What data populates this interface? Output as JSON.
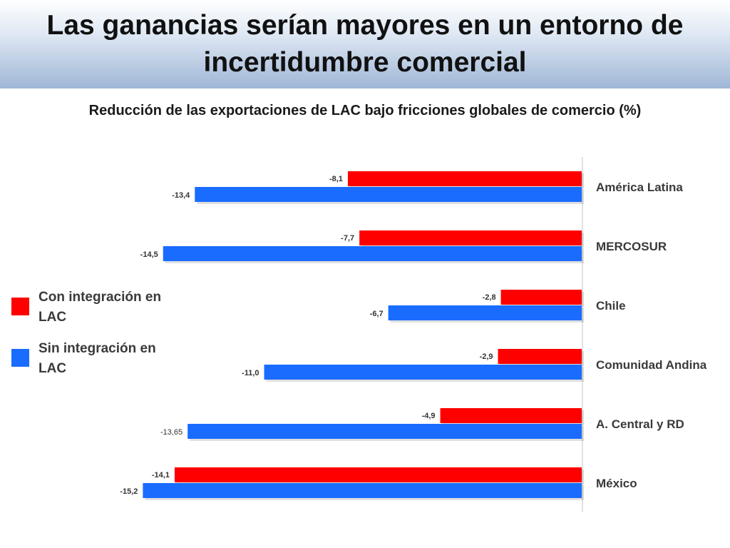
{
  "header": {
    "title_line1": "Las ganancias serían mayores en un entorno de",
    "title_line2": "incertidumbre comercial"
  },
  "colors": {
    "con": "#ff0000",
    "sin": "#1a6cff",
    "axis": "#d9d9d9"
  },
  "legend": [
    {
      "line1": "Con integración en",
      "line2": "LAC",
      "color": "#ff0000"
    },
    {
      "line1": "Sin integración en",
      "line2": "LAC",
      "color": "#1a6cff"
    }
  ],
  "chart_data": {
    "type": "bar",
    "orientation": "horizontal",
    "title": "Reducción de las exportaciones de LAC bajo fricciones globales de comercio (%)",
    "xlabel": "",
    "ylabel": "",
    "xlim": [
      -16,
      0
    ],
    "grid": false,
    "legend_position": "left",
    "categories": [
      "América Latina",
      "MERCOSUR",
      "Chile",
      "Comunidad Andina",
      "A. Central y RD",
      "México"
    ],
    "series": [
      {
        "name": "Con integración en LAC",
        "color": "#ff0000",
        "values": [
          -8.1,
          -7.7,
          -2.8,
          -2.9,
          -4.9,
          -14.1
        ],
        "labels": [
          "-8,1",
          "-7,7",
          "-2,8",
          "-2,9",
          "-4,9",
          "-14,1"
        ]
      },
      {
        "name": "Sin integración en LAC",
        "color": "#1a6cff",
        "values": [
          -13.4,
          -14.5,
          -6.7,
          -11.0,
          -13.65,
          -15.2
        ],
        "labels": [
          "-13,4",
          "-14,5",
          "-6,7",
          "-11,0",
          "-13,65",
          "-15,2"
        ]
      }
    ]
  }
}
